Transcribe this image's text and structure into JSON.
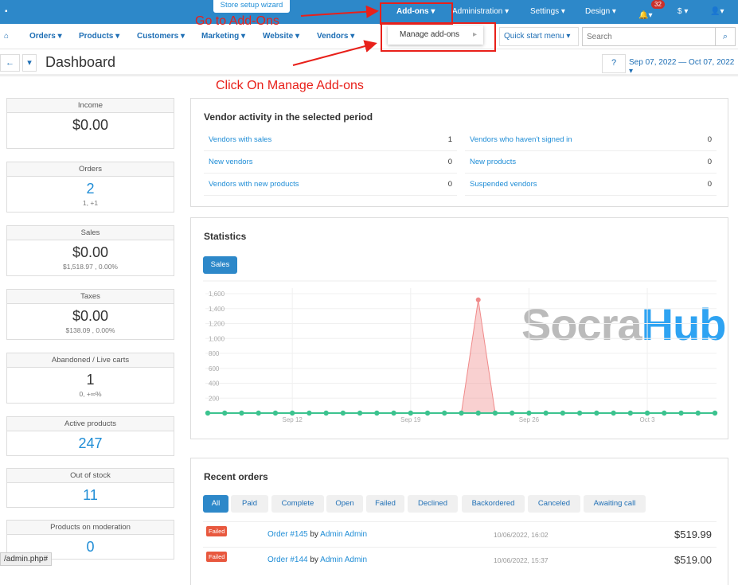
{
  "topbar": {
    "wizard": "Store setup wizard",
    "items": [
      "Add-ons ▾",
      "Administration ▾",
      "Settings ▾",
      "Design ▾"
    ],
    "notif_count": "32",
    "currency": "$ ▾"
  },
  "nav": {
    "items": [
      "Orders ▾",
      "Products ▾",
      "Customers ▾",
      "Marketing ▾",
      "Website ▾",
      "Vendors ▾"
    ],
    "quick_start": "Quick start menu ▾",
    "search_placeholder": "Search"
  },
  "dropdown": {
    "item": "Manage add-ons"
  },
  "annotations": {
    "go": "Go to Add-Ons",
    "click": "Click On Manage Add-ons"
  },
  "header": {
    "title": "Dashboard",
    "date_range": "Sep 07, 2022 — Oct 07, 2022 ▾"
  },
  "stats": [
    {
      "label": "Income",
      "value": "$0.00",
      "sub": ""
    },
    {
      "label": "Orders",
      "value": "2",
      "sub": "1, +1"
    },
    {
      "label": "Sales",
      "value": "$0.00",
      "sub": "$1,518.97 , 0.00%"
    },
    {
      "label": "Taxes",
      "value": "$0.00",
      "sub": "$138.09 , 0.00%"
    },
    {
      "label": "Abandoned / Live carts",
      "value": "1",
      "sub": "0, +∞%"
    },
    {
      "label": "Active products",
      "value": "247",
      "sub": ""
    },
    {
      "label": "Out of stock",
      "value": "11",
      "sub": ""
    },
    {
      "label": "Products on moderation",
      "value": "0",
      "sub": ""
    }
  ],
  "vendor": {
    "title": "Vendor activity in the selected period",
    "rows": [
      {
        "label": "Vendors with sales",
        "value": "1"
      },
      {
        "label": "Vendors who haven't signed in",
        "value": "0"
      },
      {
        "label": "New vendors",
        "value": "0"
      },
      {
        "label": "New products",
        "value": "0"
      },
      {
        "label": "Vendors with new products",
        "value": "0"
      },
      {
        "label": "Suspended vendors",
        "value": "0"
      }
    ]
  },
  "statistics": {
    "title": "Statistics",
    "tab": "Sales"
  },
  "chart_data": {
    "type": "area",
    "series": [
      {
        "color": "#f08a8a",
        "values": [
          0,
          0,
          0,
          0,
          0,
          0,
          0,
          0,
          0,
          0,
          0,
          0,
          0,
          0,
          0,
          0,
          1519,
          0,
          0,
          0,
          0,
          0,
          0,
          0,
          0,
          0,
          0,
          0,
          0,
          0,
          0
        ]
      },
      {
        "color": "#3cc38f",
        "values": [
          0,
          0,
          0,
          0,
          0,
          0,
          0,
          0,
          0,
          0,
          0,
          0,
          0,
          0,
          0,
          0,
          0,
          0,
          0,
          0,
          0,
          0,
          0,
          0,
          0,
          0,
          0,
          0,
          0,
          0,
          0
        ]
      }
    ],
    "x_ticks": [
      {
        "index": 5,
        "label": "Sep 12"
      },
      {
        "index": 12,
        "label": "Sep 19"
      },
      {
        "index": 19,
        "label": "Sep 26"
      },
      {
        "index": 26,
        "label": "Oct 3"
      }
    ],
    "y_ticks": [
      "200",
      "400",
      "600",
      "800",
      "1,000",
      "1,200",
      "1,400",
      "1,600"
    ],
    "ylim": [
      0,
      1600
    ],
    "grid": true
  },
  "orders": {
    "title": "Recent orders",
    "tabs": [
      "All",
      "Paid",
      "Complete",
      "Open",
      "Failed",
      "Declined",
      "Backordered",
      "Canceled",
      "Awaiting call"
    ],
    "rows": [
      {
        "status": "Failed",
        "order": "Order #145",
        "by": "by",
        "customer": "Admin Admin",
        "date": "10/06/2022, 16:02",
        "total": "$519.99"
      },
      {
        "status": "Failed",
        "order": "Order #144",
        "by": "by",
        "customer": "Admin Admin",
        "date": "10/06/2022, 15:37",
        "total": "$519.00"
      }
    ]
  },
  "statusbar": "/admin.php#",
  "watermark": {
    "a": "Socra",
    "b": "Hub"
  }
}
